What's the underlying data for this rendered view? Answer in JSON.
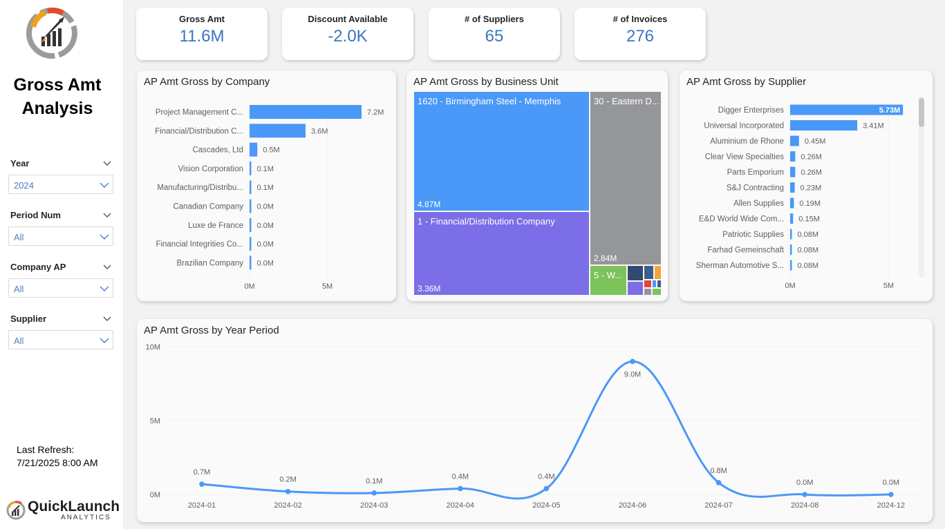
{
  "page": {
    "title_line1": "Gross Amt",
    "title_line2": "Analysis",
    "last_refresh_label": "Last Refresh:",
    "last_refresh_value": "7/21/2025 8:00 AM",
    "brand_name": "QuickLaunch",
    "brand_sub": "ANALYTICS"
  },
  "slicers": [
    {
      "label": "Year",
      "value": "2024"
    },
    {
      "label": "Period Num",
      "value": "All"
    },
    {
      "label": "Company AP",
      "value": "All"
    },
    {
      "label": "Supplier",
      "value": "All"
    }
  ],
  "kpis": [
    {
      "label": "Gross Amt",
      "value": "11.6M"
    },
    {
      "label": "Discount Available",
      "value": "-2.0K"
    },
    {
      "label": "# of Suppliers",
      "value": "65"
    },
    {
      "label": "# of Invoices",
      "value": "276"
    }
  ],
  "colors": {
    "bar": "#4a98f7",
    "line": "#4a98f7",
    "kpi_value": "#3c74c0",
    "tm_1620": "#4a98f7",
    "tm_1": "#7b6ee6",
    "tm_30": "#94969a",
    "tm_5": "#7cc35a"
  },
  "chart_data": [
    {
      "type": "bar",
      "title": "AP Amt Gross by Company",
      "orientation": "horizontal",
      "categories": [
        "Project Management C...",
        "Financial/Distribution C...",
        "Cascades, Ltd",
        "Vision Corporation",
        "Manufacturing/Distribu...",
        "Canadian Company",
        "Luxe de France",
        "Financial Integrities Co...",
        "Brazilian Company"
      ],
      "values": [
        7.2,
        3.6,
        0.5,
        0.1,
        0.1,
        0.0,
        0.0,
        0.0,
        0.0
      ],
      "labels": [
        "7.2M",
        "3.6M",
        "0.5M",
        "0.1M",
        "0.1M",
        "0.0M",
        "0.0M",
        "0.0M",
        "0.0M"
      ],
      "xticks": [
        "0M",
        "5M"
      ],
      "xlim": [
        0,
        9.2
      ]
    },
    {
      "type": "treemap",
      "title": "AP Amt Gross by Business Unit",
      "items": [
        {
          "label": "1620 - Birmingham Steel - Memphis",
          "value": "4.87M"
        },
        {
          "label": "1 - Financial/Distribution Company",
          "value": "3.36M"
        },
        {
          "label": "30 - Eastern D...",
          "value": "2.84M"
        },
        {
          "label": "5 - W...",
          "value": ""
        }
      ]
    },
    {
      "type": "bar",
      "title": "AP Amt Gross by Supplier",
      "orientation": "horizontal",
      "categories": [
        "Digger Enterprises",
        "Universal Incorporated",
        "Aluminium de Rhone",
        "Clear View Specialties",
        "Parts Emporium",
        "S&J Contracting",
        "Allen Supplies",
        "E&D World Wide Com...",
        "Patriotic Supplies",
        "Farhad Gemeinschaft",
        "Sherman Automotive S..."
      ],
      "values": [
        5.73,
        3.41,
        0.45,
        0.26,
        0.26,
        0.23,
        0.19,
        0.15,
        0.08,
        0.08,
        0.08
      ],
      "labels": [
        "5.73M",
        "3.41M",
        "0.45M",
        "0.26M",
        "0.26M",
        "0.23M",
        "0.19M",
        "0.15M",
        "0.08M",
        "0.08M",
        "0.08M"
      ],
      "xticks": [
        "0M",
        "5M"
      ],
      "xlim": [
        0,
        7.2
      ]
    },
    {
      "type": "line",
      "title": "AP Amt Gross by Year Period",
      "categories": [
        "2024-01",
        "2024-02",
        "2024-03",
        "2024-04",
        "2024-05",
        "2024-06",
        "2024-07",
        "2024-08",
        "2024-12"
      ],
      "values": [
        0.7,
        0.2,
        0.1,
        0.4,
        0.4,
        9.0,
        0.8,
        0.0,
        0.0
      ],
      "labels": [
        "0.7M",
        "0.2M",
        "0.1M",
        "0.4M",
        "0.4M",
        "9.0M",
        "0.8M",
        "0.0M",
        "0.0M"
      ],
      "yticks": [
        "0M",
        "5M",
        "10M"
      ],
      "ylim": [
        0,
        10
      ]
    }
  ]
}
